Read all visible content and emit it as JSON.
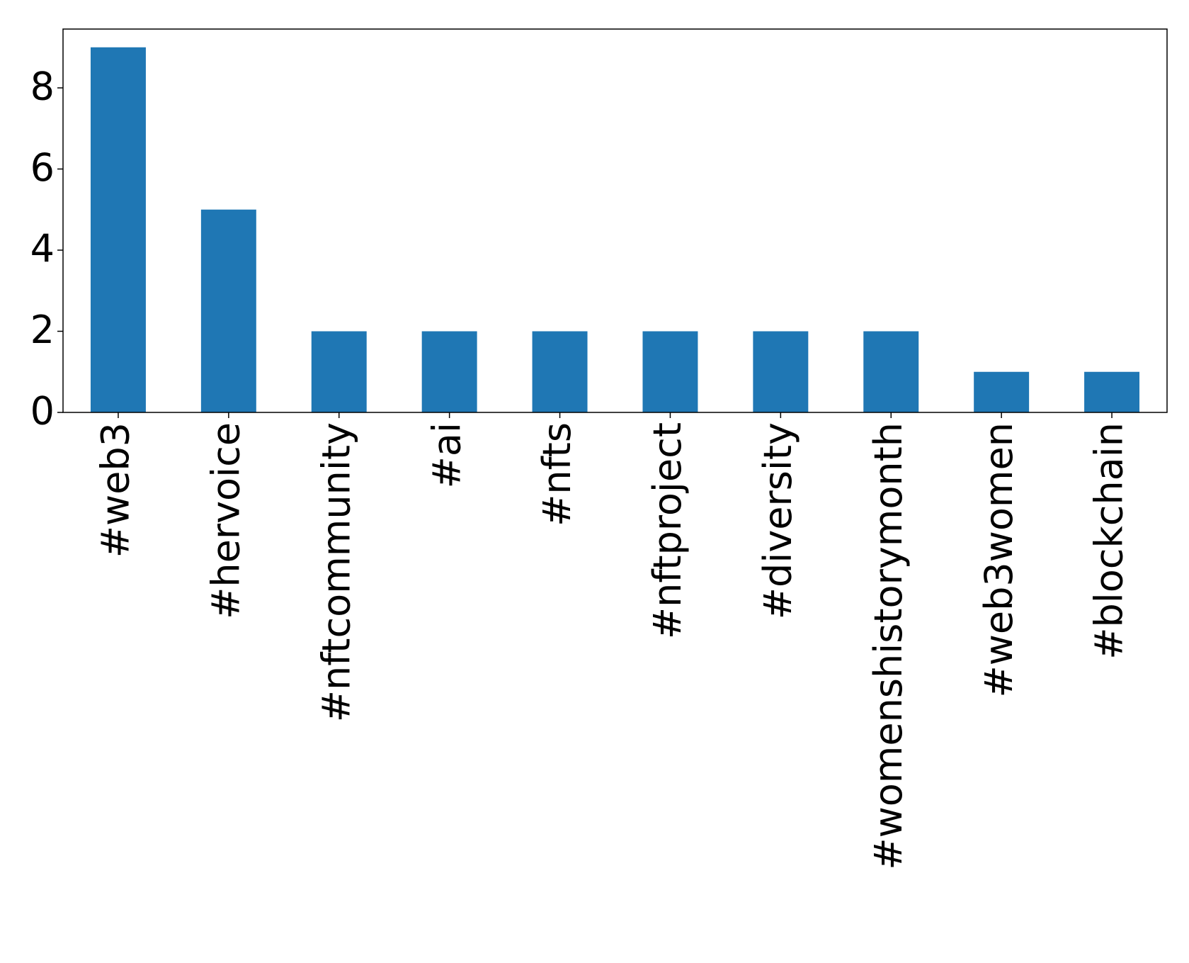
{
  "chart_data": {
    "type": "bar",
    "categories": [
      "#web3",
      "#hervoice",
      "#nftcommunity",
      "#ai",
      "#nfts",
      "#nftproject",
      "#diversity",
      "#womenshistorymonth",
      "#web3women",
      "#blockchain"
    ],
    "values": [
      9,
      5,
      2,
      2,
      2,
      2,
      2,
      2,
      1,
      1
    ],
    "color": "#1f77b4",
    "ylim": [
      0,
      9.45
    ],
    "yticks": [
      0,
      2,
      4,
      6,
      8
    ],
    "grid": false
  }
}
